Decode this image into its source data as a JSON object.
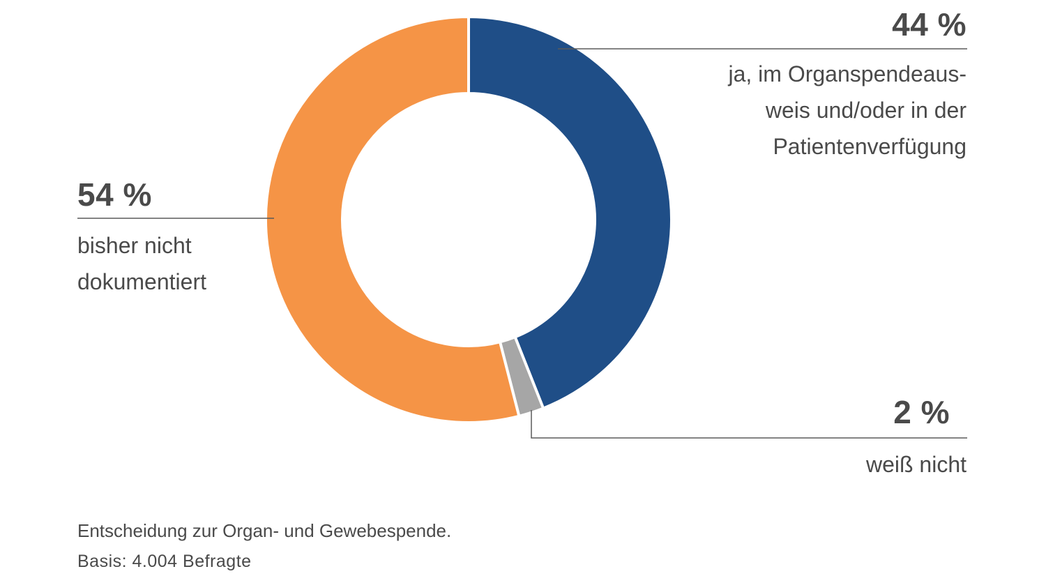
{
  "chart_data": {
    "type": "pie",
    "series": [
      {
        "value": 44,
        "value_label": "44 %",
        "label_lines": [
          "ja, im Organspendeaus-",
          "weis und/oder in der",
          "Patientenverfügung"
        ],
        "color": "#1f4e87"
      },
      {
        "value": 2,
        "value_label": "2 %",
        "label_lines": [
          "weiß nicht"
        ],
        "color": "#a6a6a6"
      },
      {
        "value": 54,
        "value_label": "54 %",
        "label_lines": [
          "bisher nicht",
          "dokumentiert"
        ],
        "color": "#f59446"
      }
    ]
  },
  "caption": "Entscheidung zur Organ- und Gewebespende.",
  "basis": "Basis: 4.004 Befragte",
  "colors": {
    "text": "#4a4a4a",
    "leader_line": "#5a5a5a",
    "separator": "#ffffff"
  }
}
